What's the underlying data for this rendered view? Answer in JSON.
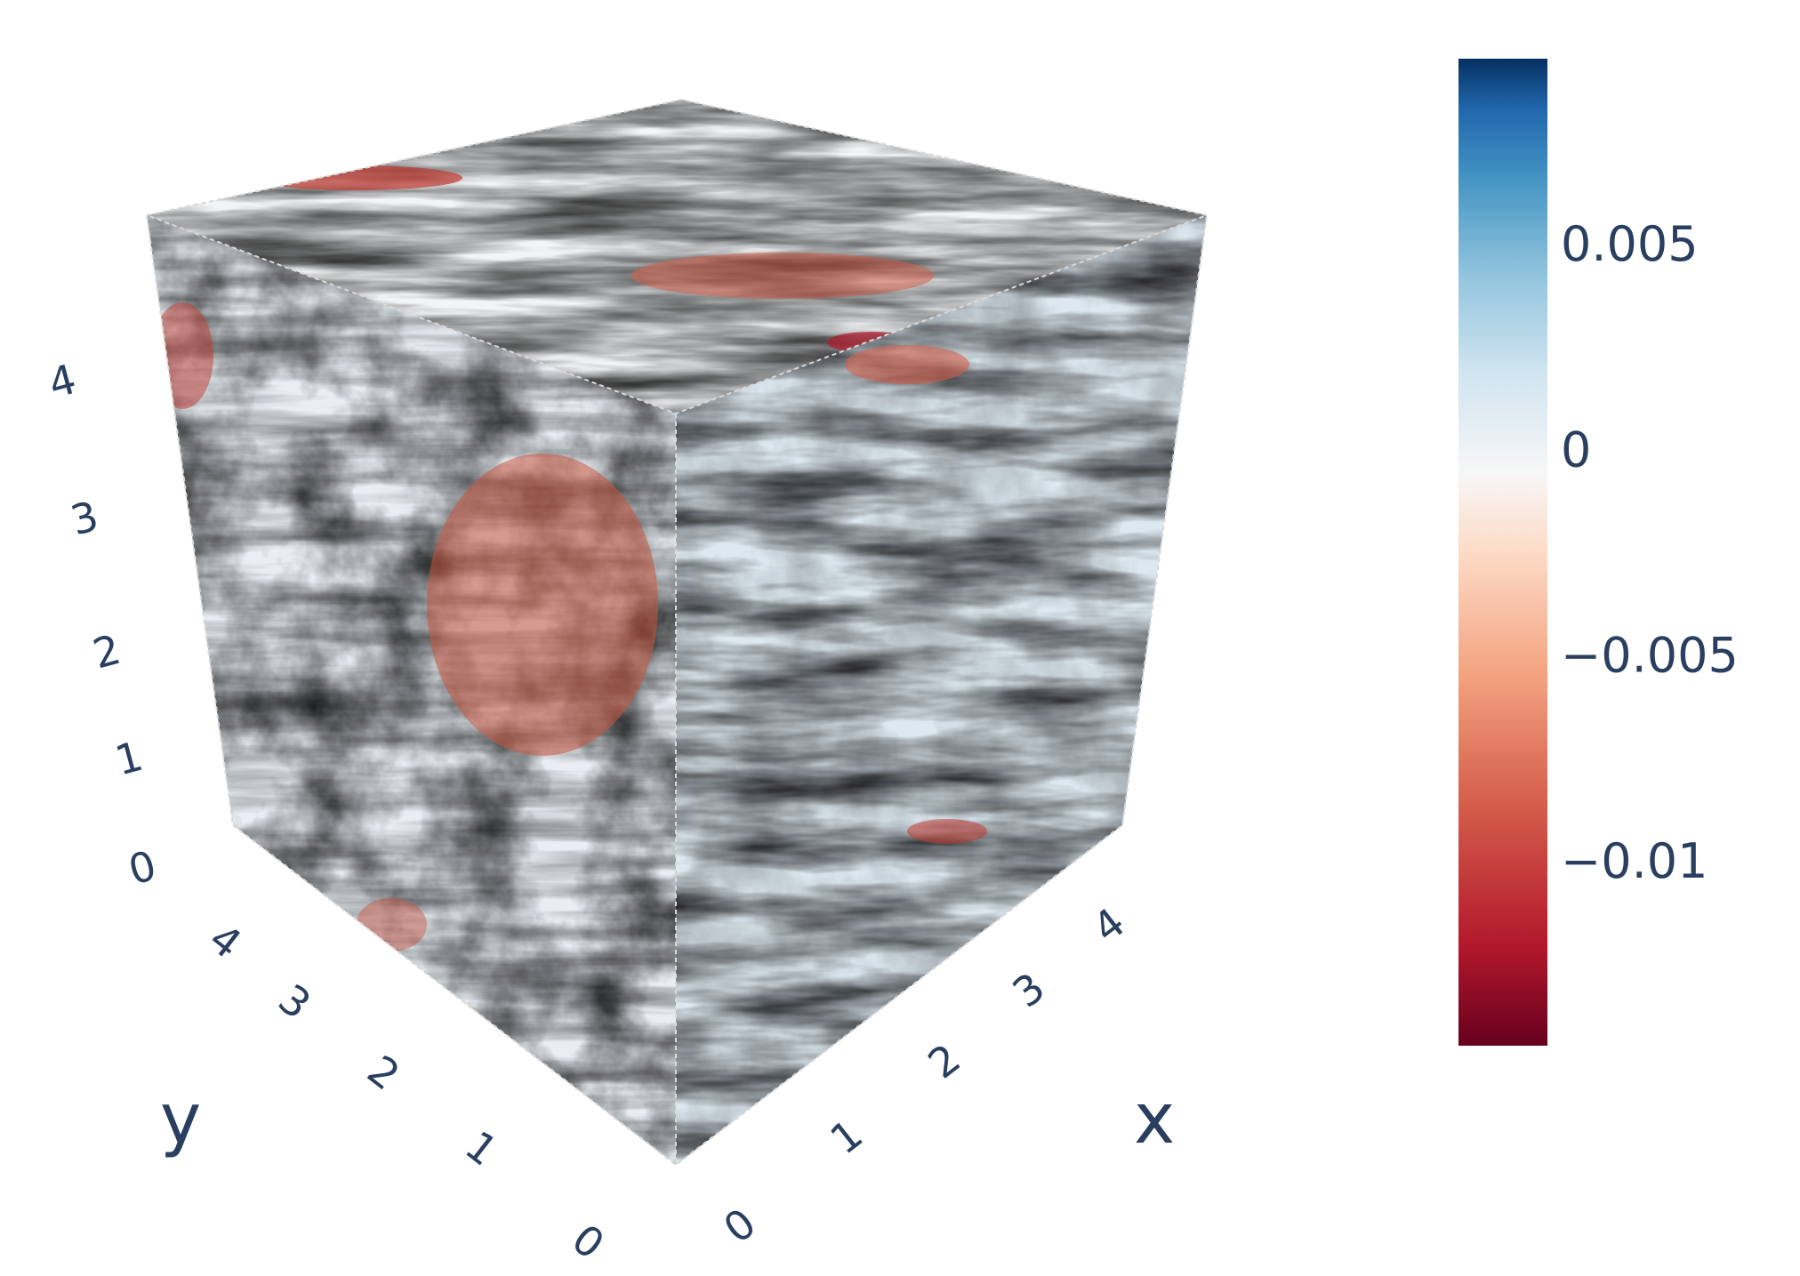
{
  "chart_data": {
    "type": "volume-slice-cube",
    "axes": {
      "x": {
        "title": "x",
        "ticks": [
          "0",
          "1",
          "2",
          "3",
          "4"
        ],
        "range": [
          0,
          4.9
        ]
      },
      "y": {
        "title": "y",
        "ticks": [
          "0",
          "1",
          "2",
          "3",
          "4"
        ],
        "range": [
          0,
          4.9
        ]
      },
      "z": {
        "title": "",
        "ticks": [
          "0",
          "1",
          "2",
          "3",
          "4"
        ],
        "range": [
          0,
          4.9
        ]
      }
    },
    "colorbar": {
      "colorscale": "RdBu",
      "range": [
        -0.0145,
        0.0095
      ],
      "ticks": [
        {
          "value": 0.005,
          "label": "0.005"
        },
        {
          "value": 0,
          "label": "0"
        },
        {
          "value": -0.005,
          "label": "−0.005"
        },
        {
          "value": -0.01,
          "label": "−0.01"
        }
      ]
    },
    "faces": [
      "top",
      "left",
      "right"
    ]
  }
}
